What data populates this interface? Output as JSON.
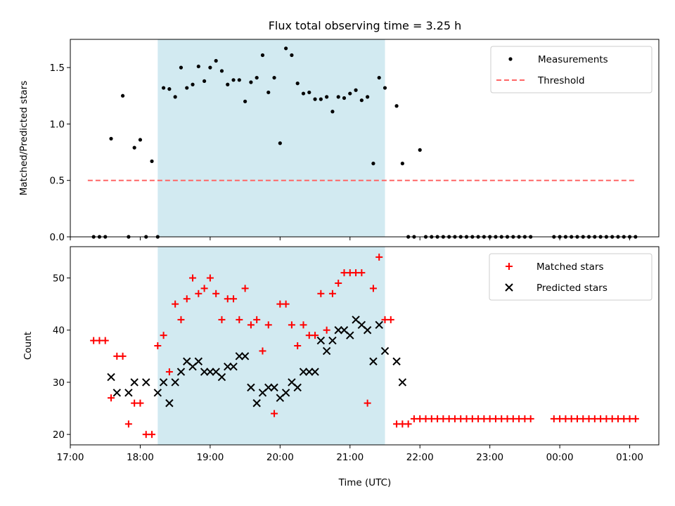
{
  "figure": {
    "title": "Flux total observing time = 3.25 h",
    "xlabel": "Time (UTC)",
    "highlight_color": "#add8e6"
  },
  "chart_data": [
    {
      "type": "scatter",
      "ylabel": "Matched/Predicted stars",
      "ylim": [
        0,
        1.75
      ],
      "yticks": [
        "0.0",
        "0.5",
        "1.0",
        "1.5"
      ],
      "yticks_values": [
        0,
        0.5,
        1.0,
        1.5
      ],
      "legend_position": "top-right",
      "highlight_span": [
        "18:15",
        "21:30"
      ],
      "series": [
        {
          "name": "Measurements",
          "marker": "dot",
          "color": "#000000",
          "x": [
            "17:20",
            "17:25",
            "17:30",
            "17:35",
            "17:45",
            "17:50",
            "17:55",
            "18:00",
            "18:05",
            "18:10",
            "18:15",
            "18:20",
            "18:25",
            "18:30",
            "18:35",
            "18:40",
            "18:45",
            "18:50",
            "18:55",
            "19:00",
            "19:05",
            "19:10",
            "19:15",
            "19:20",
            "19:25",
            "19:30",
            "19:35",
            "19:40",
            "19:45",
            "19:50",
            "19:55",
            "20:00",
            "20:05",
            "20:10",
            "20:15",
            "20:20",
            "20:25",
            "20:30",
            "20:35",
            "20:40",
            "20:45",
            "20:50",
            "20:55",
            "21:00",
            "21:05",
            "21:10",
            "21:15",
            "21:20",
            "21:25",
            "21:30",
            "21:40",
            "21:45",
            "21:50",
            "21:55",
            "22:00",
            "22:05",
            "22:10",
            "22:15",
            "22:20",
            "22:25",
            "22:30",
            "22:35",
            "22:40",
            "22:45",
            "22:50",
            "22:55",
            "23:00",
            "23:05",
            "23:10",
            "23:15",
            "23:20",
            "23:25",
            "23:30",
            "23:35",
            "23:55",
            "24:00",
            "24:05",
            "24:10",
            "24:15",
            "24:20",
            "24:25",
            "24:30",
            "24:35",
            "24:40",
            "24:45",
            "24:50",
            "24:55",
            "25:00",
            "25:05"
          ],
          "values": [
            0,
            0,
            0,
            0.87,
            1.25,
            0,
            0.79,
            0.86,
            0,
            0.67,
            0,
            1.32,
            1.31,
            1.24,
            1.5,
            1.32,
            1.35,
            1.51,
            1.38,
            1.5,
            1.56,
            1.47,
            1.35,
            1.39,
            1.39,
            1.2,
            1.37,
            1.41,
            1.61,
            1.28,
            1.41,
            0.83,
            1.67,
            1.61,
            1.36,
            1.27,
            1.28,
            1.22,
            1.22,
            1.24,
            1.11,
            1.24,
            1.23,
            1.27,
            1.3,
            1.21,
            1.24,
            0.65,
            1.41,
            1.32,
            1.16,
            0.65,
            0,
            0,
            0.77,
            0,
            0,
            0,
            0,
            0,
            0,
            0,
            0,
            0,
            0,
            0,
            0,
            0,
            0,
            0,
            0,
            0,
            0,
            0,
            0,
            0,
            0,
            0,
            0,
            0,
            0,
            0,
            0,
            0,
            0,
            0,
            0,
            0,
            0
          ]
        },
        {
          "name": "Threshold",
          "style": "dashed",
          "color": "#ff6666",
          "x": [
            "17:15",
            "25:05"
          ],
          "values": [
            0.5,
            0.5
          ]
        }
      ]
    },
    {
      "type": "scatter",
      "ylabel": "Count",
      "ylim": [
        18,
        56
      ],
      "yticks": [
        "20",
        "30",
        "40",
        "50"
      ],
      "yticks_values": [
        20,
        30,
        40,
        50
      ],
      "legend_position": "top-right",
      "highlight_span": [
        "18:15",
        "21:30"
      ],
      "xlim": [
        "17:00",
        "25:25"
      ],
      "xticks": [
        "17:00",
        "18:00",
        "19:00",
        "20:00",
        "21:00",
        "22:00",
        "23:00",
        "00:00",
        "01:00"
      ],
      "series": [
        {
          "name": "Matched stars",
          "marker": "plus",
          "color": "#ff0000",
          "x": [
            "17:20",
            "17:25",
            "17:30",
            "17:35",
            "17:40",
            "17:45",
            "17:50",
            "17:55",
            "18:00",
            "18:05",
            "18:10",
            "18:15",
            "18:20",
            "18:25",
            "18:30",
            "18:35",
            "18:40",
            "18:45",
            "18:50",
            "18:55",
            "19:00",
            "19:05",
            "19:10",
            "19:15",
            "19:20",
            "19:25",
            "19:30",
            "19:35",
            "19:40",
            "19:45",
            "19:50",
            "19:55",
            "20:00",
            "20:05",
            "20:10",
            "20:15",
            "20:20",
            "20:25",
            "20:30",
            "20:35",
            "20:40",
            "20:45",
            "20:50",
            "20:55",
            "21:00",
            "21:05",
            "21:10",
            "21:15",
            "21:20",
            "21:25",
            "21:30",
            "21:35",
            "21:40",
            "21:45",
            "21:50",
            "21:55",
            "22:00",
            "22:05",
            "22:10",
            "22:15",
            "22:20",
            "22:25",
            "22:30",
            "22:35",
            "22:40",
            "22:45",
            "22:50",
            "22:55",
            "23:00",
            "23:05",
            "23:10",
            "23:15",
            "23:20",
            "23:25",
            "23:30",
            "23:35",
            "23:55",
            "24:00",
            "24:05",
            "24:10",
            "24:15",
            "24:20",
            "24:25",
            "24:30",
            "24:35",
            "24:40",
            "24:45",
            "24:50",
            "24:55",
            "25:00",
            "25:05"
          ],
          "values": [
            38,
            38,
            38,
            27,
            35,
            35,
            22,
            26,
            26,
            20,
            20,
            37,
            39,
            32,
            45,
            42,
            46,
            50,
            47,
            48,
            50,
            47,
            42,
            46,
            46,
            42,
            48,
            41,
            42,
            36,
            41,
            24,
            45,
            45,
            41,
            37,
            41,
            39,
            39,
            47,
            40,
            47,
            49,
            51,
            51,
            51,
            51,
            26,
            48,
            54,
            42,
            42,
            22,
            22,
            22,
            23,
            23,
            23,
            23,
            23,
            23,
            23,
            23,
            23,
            23,
            23,
            23,
            23,
            23,
            23,
            23,
            23,
            23,
            23,
            23,
            23,
            23,
            23,
            23,
            23,
            23,
            23,
            23,
            23,
            23,
            23,
            23,
            23,
            23,
            23,
            23
          ]
        },
        {
          "name": "Predicted stars",
          "marker": "x",
          "color": "#000000",
          "x": [
            "17:35",
            "17:40",
            "17:50",
            "17:55",
            "18:05",
            "18:15",
            "18:20",
            "18:25",
            "18:30",
            "18:35",
            "18:40",
            "18:45",
            "18:50",
            "18:55",
            "19:00",
            "19:05",
            "19:10",
            "19:15",
            "19:20",
            "19:25",
            "19:30",
            "19:35",
            "19:40",
            "19:45",
            "19:50",
            "19:55",
            "20:00",
            "20:05",
            "20:10",
            "20:15",
            "20:20",
            "20:25",
            "20:30",
            "20:35",
            "20:40",
            "20:45",
            "20:50",
            "20:55",
            "21:00",
            "21:05",
            "21:10",
            "21:15",
            "21:20",
            "21:25",
            "21:30",
            "21:40",
            "21:45"
          ],
          "values": [
            31,
            28,
            28,
            30,
            30,
            28,
            30,
            26,
            30,
            32,
            34,
            33,
            34,
            32,
            32,
            32,
            31,
            33,
            33,
            35,
            35,
            29,
            26,
            28,
            29,
            29,
            27,
            28,
            30,
            29,
            32,
            32,
            32,
            38,
            36,
            38,
            40,
            40,
            39,
            42,
            41,
            40,
            34,
            41,
            36,
            34,
            30
          ]
        }
      ]
    }
  ]
}
